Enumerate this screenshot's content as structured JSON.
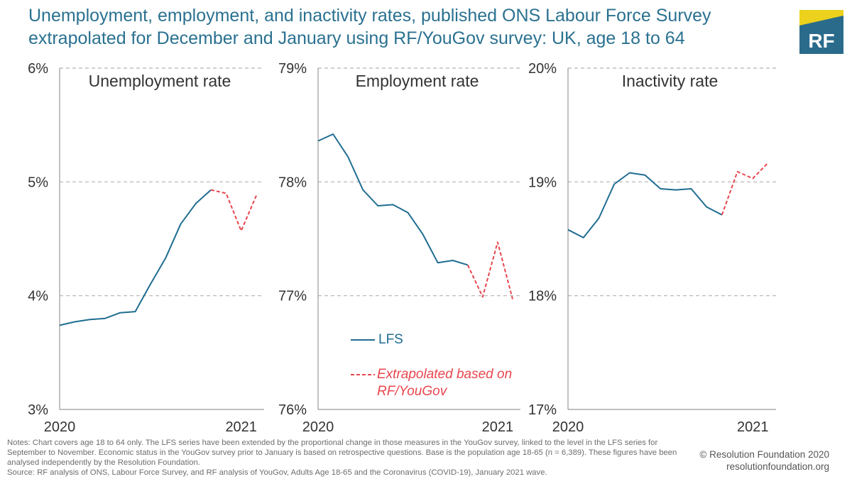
{
  "title": {
    "line1": "Unemployment, employment, and inactivity rates, published ONS Labour Force Survey",
    "line2": "extrapolated for December and January using RF/YouGov survey: UK, age 18 to 64"
  },
  "logo": {
    "text": "RF",
    "bg_color": "#2a6b8c",
    "accent_color": "#ecd21c"
  },
  "colors": {
    "lfs": "#1f6d91",
    "extrapolated": "#e8464e",
    "grid": "#b3b3b3",
    "axis_text": "#333333"
  },
  "chart_data": [
    {
      "type": "line",
      "title": "Unemployment rate",
      "x_tick_labels": [
        "2020",
        "2021"
      ],
      "ylim": [
        3,
        6
      ],
      "y_ticks": [
        3,
        4,
        5,
        6
      ],
      "y_tick_labels": [
        "3%",
        "4%",
        "5%",
        "6%"
      ],
      "grid": true,
      "series": [
        {
          "name": "LFS",
          "style": "solid",
          "x": [
            0,
            1,
            2,
            3,
            4,
            5,
            6,
            7,
            8,
            9,
            10
          ],
          "values": [
            3.74,
            3.77,
            3.79,
            3.8,
            3.85,
            3.86,
            4.1,
            4.33,
            4.63,
            4.81,
            4.93
          ]
        },
        {
          "name": "Extrapolated based on RF/YouGov",
          "style": "dashed",
          "x": [
            10,
            11,
            12,
            13
          ],
          "values": [
            4.93,
            4.9,
            4.57,
            4.88
          ]
        }
      ]
    },
    {
      "type": "line",
      "title": "Employment rate",
      "x_tick_labels": [
        "2020",
        "2021"
      ],
      "ylim": [
        76,
        79
      ],
      "y_ticks": [
        76,
        77,
        78,
        79
      ],
      "y_tick_labels": [
        "76%",
        "77%",
        "78%",
        "79%"
      ],
      "grid": true,
      "series": [
        {
          "name": "LFS",
          "style": "solid",
          "x": [
            0,
            1,
            2,
            3,
            4,
            5,
            6,
            7,
            8,
            9,
            10
          ],
          "values": [
            78.36,
            78.42,
            78.22,
            77.93,
            77.79,
            77.8,
            77.73,
            77.54,
            77.29,
            77.31,
            77.27
          ]
        },
        {
          "name": "Extrapolated based on RF/YouGov",
          "style": "dashed",
          "x": [
            10,
            11,
            12,
            13
          ],
          "values": [
            77.27,
            76.99,
            77.47,
            76.97
          ]
        }
      ]
    },
    {
      "type": "line",
      "title": "Inactivity rate",
      "x_tick_labels": [
        "2020",
        "2021"
      ],
      "ylim": [
        17,
        20
      ],
      "y_ticks": [
        17,
        18,
        19,
        20
      ],
      "y_tick_labels": [
        "17%",
        "18%",
        "19%",
        "20%"
      ],
      "grid": true,
      "series": [
        {
          "name": "LFS",
          "style": "solid",
          "x": [
            0,
            1,
            2,
            3,
            4,
            5,
            6,
            7,
            8,
            9,
            10
          ],
          "values": [
            18.58,
            18.51,
            18.68,
            18.98,
            19.08,
            19.06,
            18.94,
            18.93,
            18.94,
            18.78,
            18.71
          ]
        },
        {
          "name": "Extrapolated based on RF/YouGov",
          "style": "dashed",
          "x": [
            10,
            11,
            12,
            13
          ],
          "values": [
            18.71,
            19.09,
            19.03,
            19.17
          ]
        }
      ]
    }
  ],
  "legend": {
    "lfs": "LFS",
    "extrapolated_line1": "Extrapolated based on",
    "extrapolated_line2": "RF/YouGov"
  },
  "notes": "Notes: Chart covers age 18 to 64 only. The LFS series have been extended by the proportional change in those measures in the YouGov survey, linked to the level in the LFS series for September to November. Economic status in the YouGov survey prior to January is based on retrospective questions. Base is the population age 18-65 (n = 6,389). These figures have been analysed independently by the Resolution Foundation.",
  "source": "Source: RF analysis of ONS, Labour Force Survey, and RF analysis of YouGov, Adults Age 18-65 and the Coronavirus (COVID-19), January 2021 wave.",
  "credit": {
    "line1": "© Resolution Foundation 2020",
    "line2": "resolutionfoundation.org"
  }
}
